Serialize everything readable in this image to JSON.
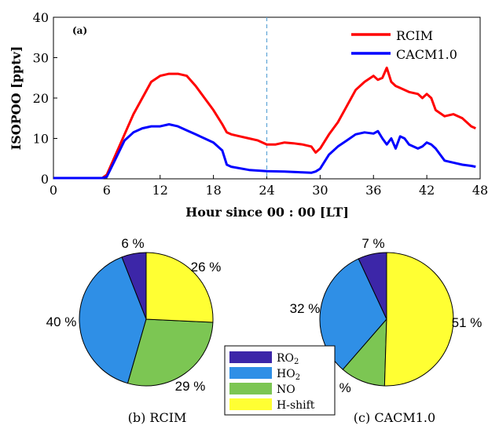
{
  "chart_data": [
    {
      "type": "line",
      "panel_tag": "(a)",
      "xlabel": "Hour since 00 : 00 [LT]",
      "ylabel": "ISOPOO [pptv]",
      "xlim": [
        0,
        48
      ],
      "ylim": [
        0,
        40
      ],
      "xticks": [
        0,
        6,
        12,
        18,
        24,
        30,
        36,
        42,
        48
      ],
      "yticks": [
        0,
        10,
        20,
        30,
        40
      ],
      "grid": false,
      "legend_position": "top-right",
      "reference_line_x": 24,
      "series": [
        {
          "name": "RCIM",
          "color": "#ff0000",
          "x": [
            0,
            5.5,
            6,
            7,
            8,
            9,
            10,
            11,
            12,
            13,
            14,
            15,
            16,
            17,
            18,
            19,
            19.5,
            20,
            21,
            22,
            23,
            24,
            25,
            26,
            27,
            28,
            29,
            29.5,
            30,
            31,
            32,
            33,
            34,
            35,
            36,
            36.5,
            37,
            37.5,
            38,
            38.5,
            39,
            40,
            41,
            41.5,
            42,
            42.5,
            43,
            44,
            45,
            46,
            47,
            47.5
          ],
          "values": [
            0.2,
            0.2,
            1,
            6,
            11,
            16,
            20,
            24,
            25.5,
            26,
            26,
            25.5,
            23,
            20,
            17,
            13.5,
            11.5,
            11,
            10.5,
            10,
            9.5,
            8.5,
            8.5,
            9,
            8.8,
            8.5,
            8,
            6.5,
            7.5,
            11,
            14,
            18,
            22,
            24,
            25.5,
            24.5,
            25,
            27.5,
            24,
            23,
            22.5,
            21.5,
            21,
            20,
            21,
            20,
            17,
            15.5,
            16,
            15,
            13,
            12.5
          ]
        },
        {
          "name": "CACM1.0",
          "color": "#0000ff",
          "x": [
            0,
            5.5,
            6,
            7,
            8,
            9,
            10,
            11,
            12,
            13,
            14,
            15,
            16,
            17,
            18,
            19,
            19.5,
            20,
            22,
            24,
            26,
            28,
            29,
            29.5,
            30,
            31,
            32,
            33,
            34,
            35,
            36,
            36.5,
            37,
            37.5,
            38,
            38.5,
            39,
            39.5,
            40,
            41,
            41.5,
            42,
            42.5,
            43,
            44,
            45,
            46,
            47,
            47.5
          ],
          "values": [
            0.2,
            0.2,
            0.5,
            5,
            9.5,
            11.5,
            12.5,
            13,
            13,
            13.5,
            13,
            12,
            11,
            10,
            9,
            7,
            3.5,
            3,
            2.2,
            1.9,
            1.8,
            1.6,
            1.5,
            1.8,
            2.5,
            6,
            8,
            9.5,
            11,
            11.5,
            11.2,
            11.8,
            10,
            8.5,
            10,
            7.5,
            10.5,
            10,
            8.5,
            7.5,
            8,
            9,
            8.5,
            7.5,
            4.5,
            4,
            3.5,
            3.2,
            3
          ]
        }
      ]
    },
    {
      "type": "pie",
      "caption": "(b) RCIM",
      "categories": [
        "RO2",
        "HO2",
        "NO",
        "H-shift"
      ],
      "values": [
        6,
        40,
        29,
        26
      ],
      "labels": [
        "6 %",
        "40 %",
        "29 %",
        "26 %"
      ],
      "colors": [
        "#3c26a8",
        "#2f8fe6",
        "#7cc653",
        "#ffff33"
      ]
    },
    {
      "type": "pie",
      "caption": "(c) CACM1.0",
      "categories": [
        "RO2",
        "HO2",
        "NO",
        "H-shift"
      ],
      "values": [
        7,
        32,
        11,
        51
      ],
      "labels": [
        "7 %",
        "32 %",
        "11 %",
        "51 %"
      ],
      "colors": [
        "#3c26a8",
        "#2f8fe6",
        "#7cc653",
        "#ffff33"
      ]
    }
  ],
  "legend_bottom": [
    {
      "label": "RO",
      "sub": "2",
      "color": "#3c26a8"
    },
    {
      "label": "HO",
      "sub": "2",
      "color": "#2f8fe6"
    },
    {
      "label": "NO",
      "sub": "",
      "color": "#7cc653"
    },
    {
      "label": "H-shift",
      "sub": "",
      "color": "#ffff33"
    }
  ]
}
